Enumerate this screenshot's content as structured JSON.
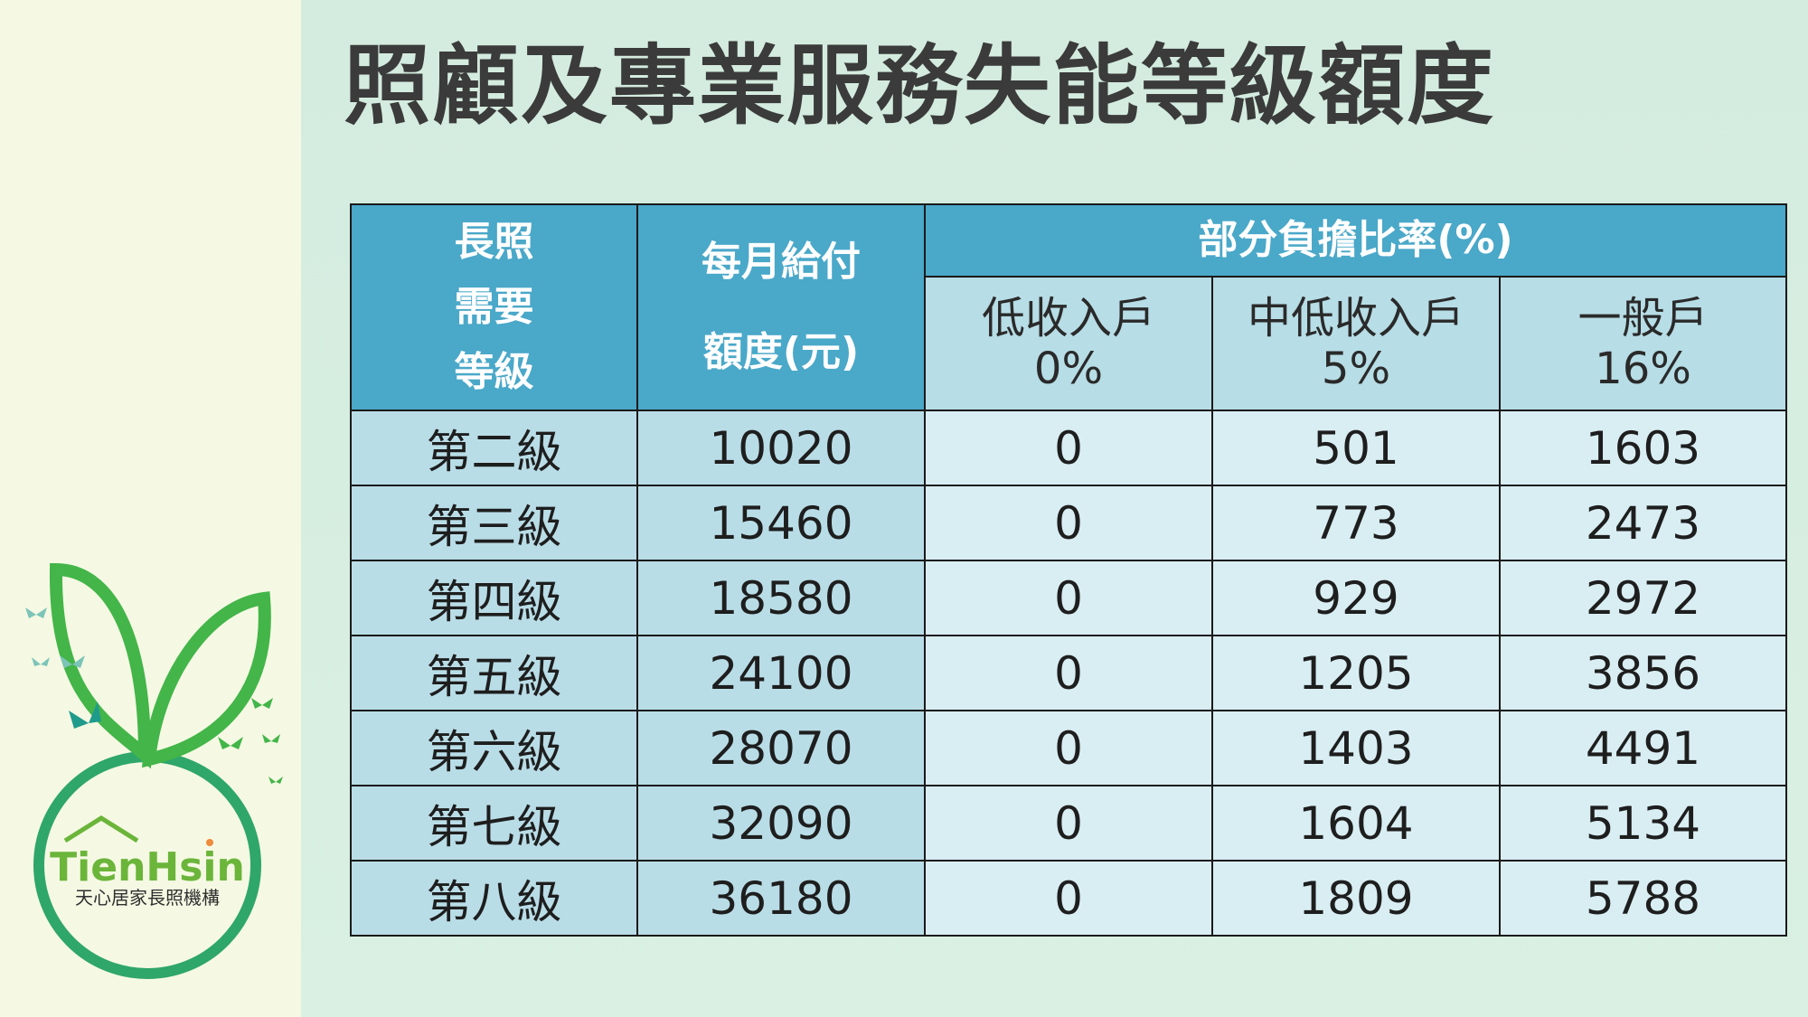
{
  "title": "照顧及專業服務失能等級額度",
  "table": {
    "headers": {
      "level_lines": [
        "長照",
        "需要",
        "等級"
      ],
      "amount_lines": [
        "每月給付",
        "額度(元)"
      ],
      "ratio_group": "部分負擔比率(%)",
      "sub": [
        {
          "name": "低收入戶",
          "rate": "0%"
        },
        {
          "name": "中低收入戶",
          "rate": "5%"
        },
        {
          "name": "一般戶",
          "rate": "16%"
        }
      ]
    },
    "rows": [
      {
        "level": "第二級",
        "amount": "10020",
        "low": "0",
        "midlow": "501",
        "general": "1603"
      },
      {
        "level": "第三級",
        "amount": "15460",
        "low": "0",
        "midlow": "773",
        "general": "2473"
      },
      {
        "level": "第四級",
        "amount": "18580",
        "low": "0",
        "midlow": "929",
        "general": "2972"
      },
      {
        "level": "第五級",
        "amount": "24100",
        "low": "0",
        "midlow": "1205",
        "general": "3856"
      },
      {
        "level": "第六級",
        "amount": "28070",
        "low": "0",
        "midlow": "1403",
        "general": "4491"
      },
      {
        "level": "第七級",
        "amount": "32090",
        "low": "0",
        "midlow": "1604",
        "general": "5134"
      },
      {
        "level": "第八級",
        "amount": "36180",
        "low": "0",
        "midlow": "1809",
        "general": "5788"
      }
    ]
  },
  "logo": {
    "brand": "TienHsin",
    "org_name": "天心居家長照機構",
    "colors": {
      "green": "#3fb25a",
      "teal": "#1f9b8c",
      "orange": "#f08a3c"
    }
  }
}
